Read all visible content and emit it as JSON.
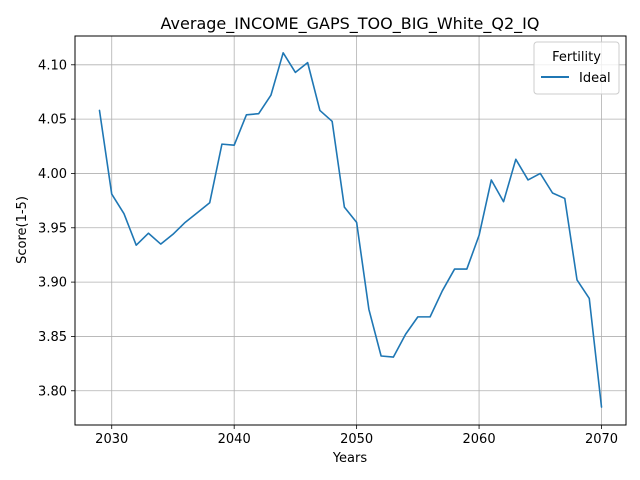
{
  "chart_data": {
    "type": "line",
    "title": "Average_INCOME_GAPS_TOO_BIG_White_Q2_IQ",
    "xlabel": "Years",
    "ylabel": "Score(1-5)",
    "xlim": [
      2027,
      2072
    ],
    "ylim": [
      3.7685,
      4.1265
    ],
    "xticks": [
      2030,
      2040,
      2050,
      2060,
      2070
    ],
    "yticks": [
      3.8,
      3.85,
      3.9,
      3.95,
      4.0,
      4.05,
      4.1
    ],
    "grid": true,
    "legend": {
      "title": "Fertility",
      "placement": "top-right"
    },
    "series": [
      {
        "name": "Ideal",
        "color": "#1f77b4",
        "x": [
          2029,
          2030,
          2031,
          2032,
          2033,
          2034,
          2035,
          2036,
          2037,
          2038,
          2039,
          2040,
          2041,
          2042,
          2043,
          2044,
          2045,
          2046,
          2047,
          2048,
          2049,
          2050,
          2051,
          2052,
          2053,
          2054,
          2055,
          2056,
          2057,
          2058,
          2059,
          2060,
          2061,
          2062,
          2063,
          2064,
          2065,
          2066,
          2067,
          2068,
          2069,
          2070
        ],
        "y": [
          4.058,
          3.981,
          3.963,
          3.934,
          3.945,
          3.935,
          3.944,
          3.955,
          3.964,
          3.973,
          4.027,
          4.026,
          4.054,
          4.055,
          4.072,
          4.111,
          4.093,
          4.102,
          4.058,
          4.048,
          3.969,
          3.955,
          3.875,
          3.832,
          3.831,
          3.852,
          3.868,
          3.868,
          3.892,
          3.912,
          3.912,
          3.943,
          3.994,
          3.974,
          4.013,
          3.994,
          4.0,
          3.982,
          3.977,
          3.902,
          3.885,
          3.785
        ]
      }
    ]
  }
}
